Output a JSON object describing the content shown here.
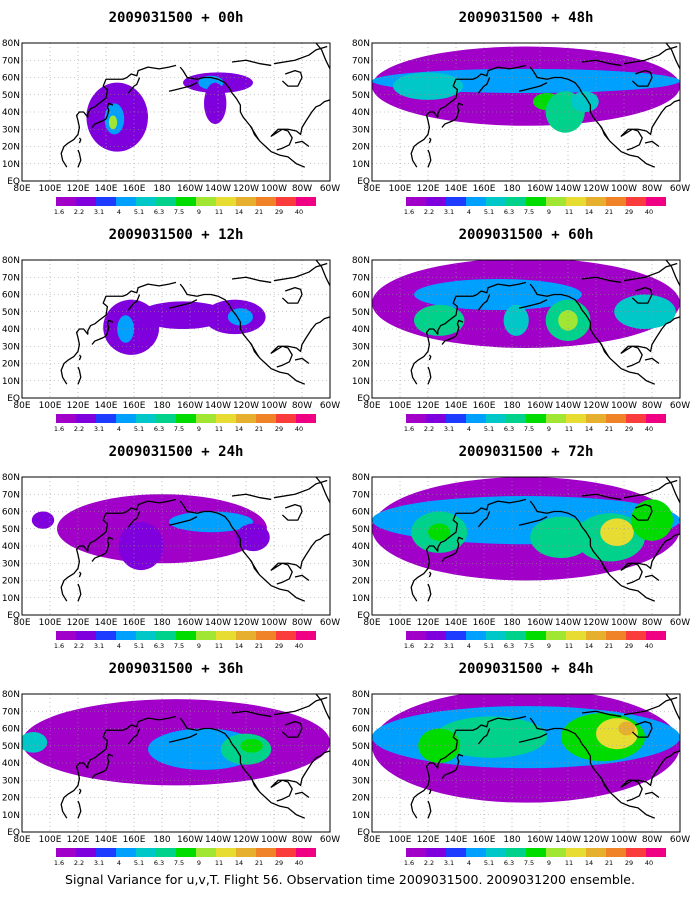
{
  "caption": "Signal Variance for u,v,T. Flight 56. Observation time 2009031500. 2009031200 ensemble.",
  "colorbar": {
    "levels": [
      "1.6",
      "2.2",
      "3.1",
      "4",
      "5.1",
      "6.3",
      "7.5",
      "9",
      "11",
      "14",
      "21",
      "29",
      "40"
    ],
    "colors": [
      "#a000c8",
      "#7f00dc",
      "#1e3cff",
      "#00a0ff",
      "#00c8c8",
      "#00d28c",
      "#00dc00",
      "#a0e632",
      "#e6dc32",
      "#e6af2d",
      "#f08228",
      "#fa3c3c",
      "#f00082"
    ]
  },
  "map": {
    "lon_labels": [
      "80E",
      "100E",
      "120E",
      "140E",
      "160E",
      "180",
      "160W",
      "140W",
      "120W",
      "100W",
      "80W",
      "60W"
    ],
    "lat_labels": [
      "EQ",
      "10N",
      "20N",
      "30N",
      "40N",
      "50N",
      "60N",
      "70N",
      "80N"
    ],
    "extent": {
      "lon": [
        80,
        300
      ],
      "lat": [
        0,
        80
      ]
    },
    "coastline_color": "#000000",
    "grid": "dotted"
  },
  "panels": [
    {
      "title": "2009031500 + 00h",
      "lead_hours": 0
    },
    {
      "title": "2009031500 + 48h",
      "lead_hours": 48
    },
    {
      "title": "2009031500 + 12h",
      "lead_hours": 12
    },
    {
      "title": "2009031500 + 60h",
      "lead_hours": 60
    },
    {
      "title": "2009031500 + 24h",
      "lead_hours": 24
    },
    {
      "title": "2009031500 + 72h",
      "lead_hours": 72
    },
    {
      "title": "2009031500 + 36h",
      "lead_hours": 36
    },
    {
      "title": "2009031500 + 84h",
      "lead_hours": 84
    }
  ]
}
